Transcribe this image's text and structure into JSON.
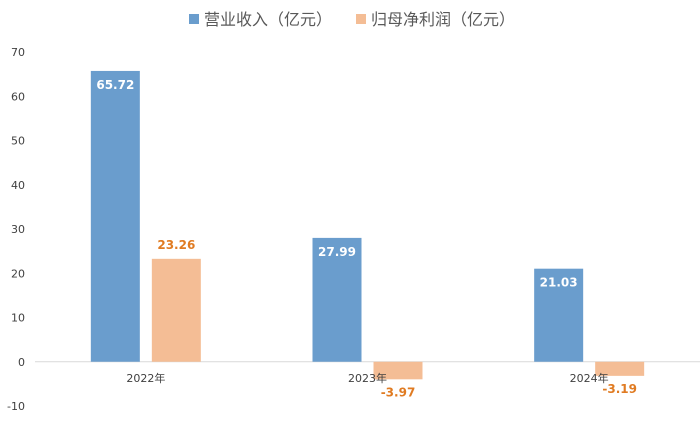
{
  "chart_data": {
    "type": "bar",
    "title": "",
    "xlabel": "",
    "ylabel": "",
    "categories": [
      "2022年",
      "2023年",
      "2024年"
    ],
    "series": [
      {
        "name": "营业收入（亿元）",
        "values": [
          65.72,
          27.99,
          21.03
        ],
        "labels": [
          "65.72",
          "27.99",
          "21.03"
        ],
        "color": "#6a9dcd"
      },
      {
        "name": "归母净利润（亿元）",
        "values": [
          23.26,
          -3.97,
          -3.19
        ],
        "labels": [
          "23.26",
          "-3.97",
          "-3.19"
        ],
        "color": "#f4bd95"
      }
    ],
    "ylim": [
      -10,
      70
    ],
    "yticks": [
      70,
      60,
      50,
      40,
      30,
      20,
      10,
      0,
      -10
    ],
    "grid": false,
    "legend_position": "top-center",
    "data_label_colors": {
      "inside": "#ffffff",
      "outside": "#e07b22"
    }
  }
}
